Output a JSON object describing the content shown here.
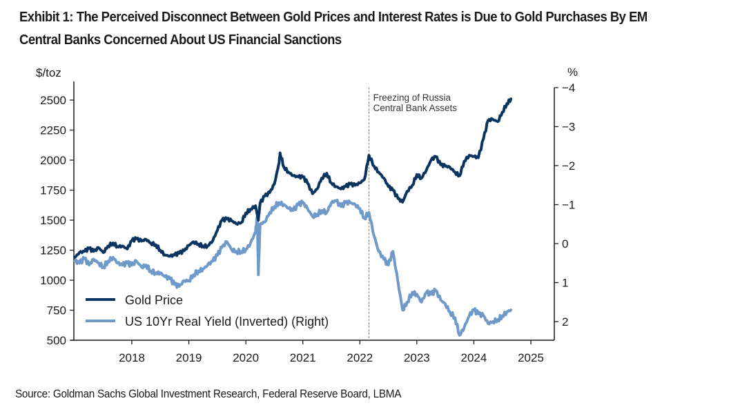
{
  "title": "Exhibit 1: The Perceived Disconnect Between Gold Prices and Interest Rates is Due to Gold Purchases By EM Central Banks Concerned About US Financial Sanctions",
  "source": "Source: Goldman Sachs Global Investment Research, Federal Reserve Board, LBMA",
  "chart_data": {
    "type": "line",
    "title": "Exhibit 1: The Perceived Disconnect Between Gold Prices and Interest Rates is Due to Gold Purchases By EM Central Banks Concerned About US Financial Sanctions",
    "xlabel": "",
    "ylabel_left": "$/toz",
    "ylabel_right": "%",
    "xlim": [
      2017.0,
      2025.45
    ],
    "ylim_left": [
      500,
      2600
    ],
    "ylim_right": [
      2.35,
      -4.35
    ],
    "right_axis_inverted": true,
    "x_ticks": [
      2018,
      2019,
      2020,
      2021,
      2022,
      2023,
      2024,
      2025
    ],
    "x_tick_labels": [
      "2018",
      "2019",
      "2020",
      "2021",
      "2022",
      "2023",
      "2024",
      "2025"
    ],
    "y_left_ticks": [
      500,
      750,
      1000,
      1250,
      1500,
      1750,
      2000,
      2250,
      2500
    ],
    "y_left_tick_labels": [
      "500",
      "750",
      "1000",
      "1250",
      "1500",
      "1750",
      "2000",
      "2250",
      "2500"
    ],
    "y_right_ticks": [
      -4,
      -3,
      -2,
      -1,
      0,
      1,
      2
    ],
    "y_right_tick_labels": [
      "−4",
      "−3",
      "−2",
      "−1",
      "0",
      "1",
      "2"
    ],
    "grid": false,
    "legend_position": "bottom-left",
    "annotations": [
      {
        "type": "vline",
        "x": 2022.16,
        "style": "dashed",
        "text_lines": [
          "Freezing of Russia",
          "Central Bank Assets"
        ]
      }
    ],
    "series": [
      {
        "name": "Gold Price",
        "axis": "left",
        "color": "#0a3460",
        "x": [
          2017.0,
          2017.08,
          2017.17,
          2017.25,
          2017.33,
          2017.42,
          2017.5,
          2017.58,
          2017.67,
          2017.75,
          2017.83,
          2017.92,
          2018.0,
          2018.08,
          2018.17,
          2018.25,
          2018.33,
          2018.42,
          2018.5,
          2018.58,
          2018.67,
          2018.75,
          2018.83,
          2018.92,
          2019.0,
          2019.08,
          2019.17,
          2019.25,
          2019.33,
          2019.42,
          2019.5,
          2019.58,
          2019.67,
          2019.75,
          2019.83,
          2019.92,
          2020.0,
          2020.08,
          2020.17,
          2020.22,
          2020.25,
          2020.33,
          2020.42,
          2020.5,
          2020.58,
          2020.6,
          2020.67,
          2020.75,
          2020.83,
          2020.92,
          2021.0,
          2021.08,
          2021.17,
          2021.25,
          2021.33,
          2021.42,
          2021.5,
          2021.58,
          2021.67,
          2021.75,
          2021.83,
          2021.92,
          2022.0,
          2022.08,
          2022.16,
          2022.25,
          2022.33,
          2022.42,
          2022.5,
          2022.58,
          2022.67,
          2022.75,
          2022.83,
          2022.92,
          2023.0,
          2023.08,
          2023.17,
          2023.25,
          2023.33,
          2023.42,
          2023.5,
          2023.58,
          2023.67,
          2023.75,
          2023.83,
          2023.92,
          2024.0,
          2024.08,
          2024.17,
          2024.25,
          2024.33,
          2024.42,
          2024.5,
          2024.58,
          2024.65
        ],
        "values": [
          1190,
          1230,
          1240,
          1265,
          1240,
          1270,
          1230,
          1285,
          1310,
          1280,
          1285,
          1260,
          1330,
          1345,
          1325,
          1340,
          1310,
          1295,
          1250,
          1210,
          1200,
          1210,
          1225,
          1245,
          1290,
          1320,
          1300,
          1285,
          1285,
          1330,
          1415,
          1500,
          1510,
          1495,
          1470,
          1480,
          1560,
          1590,
          1620,
          1500,
          1640,
          1700,
          1730,
          1800,
          1970,
          2060,
          1940,
          1900,
          1870,
          1860,
          1860,
          1810,
          1720,
          1760,
          1850,
          1890,
          1810,
          1780,
          1760,
          1780,
          1800,
          1790,
          1810,
          1840,
          2040,
          1950,
          1900,
          1850,
          1780,
          1750,
          1680,
          1650,
          1740,
          1790,
          1880,
          1850,
          1920,
          2000,
          2030,
          1960,
          1950,
          1940,
          1900,
          1870,
          1990,
          2040,
          2030,
          2020,
          2180,
          2330,
          2340,
          2320,
          2400,
          2470,
          2510
        ]
      },
      {
        "name": "US 10Yr Real Yield (Inverted) (Right)",
        "axis": "right",
        "color": "#6f99c8",
        "x": [
          2017.0,
          2017.08,
          2017.17,
          2017.25,
          2017.33,
          2017.42,
          2017.5,
          2017.58,
          2017.67,
          2017.75,
          2017.83,
          2017.92,
          2018.0,
          2018.08,
          2018.17,
          2018.25,
          2018.33,
          2018.42,
          2018.5,
          2018.58,
          2018.67,
          2018.75,
          2018.83,
          2018.92,
          2019.0,
          2019.08,
          2019.17,
          2019.25,
          2019.33,
          2019.42,
          2019.5,
          2019.58,
          2019.67,
          2019.75,
          2019.83,
          2019.92,
          2020.0,
          2020.08,
          2020.17,
          2020.2,
          2020.22,
          2020.25,
          2020.33,
          2020.42,
          2020.5,
          2020.58,
          2020.67,
          2020.75,
          2020.83,
          2020.92,
          2021.0,
          2021.08,
          2021.17,
          2021.25,
          2021.33,
          2021.42,
          2021.5,
          2021.58,
          2021.67,
          2021.75,
          2021.83,
          2021.92,
          2022.0,
          2022.08,
          2022.16,
          2022.25,
          2022.33,
          2022.42,
          2022.5,
          2022.58,
          2022.67,
          2022.75,
          2022.83,
          2022.92,
          2023.0,
          2023.08,
          2023.17,
          2023.25,
          2023.33,
          2023.42,
          2023.5,
          2023.58,
          2023.67,
          2023.75,
          2023.83,
          2023.92,
          2024.0,
          2024.08,
          2024.17,
          2024.25,
          2024.33,
          2024.42,
          2024.5,
          2024.58,
          2024.65
        ],
        "values": [
          0.45,
          0.5,
          0.38,
          0.55,
          0.4,
          0.5,
          0.6,
          0.45,
          0.35,
          0.5,
          0.55,
          0.5,
          0.55,
          0.45,
          0.6,
          0.55,
          0.7,
          0.75,
          0.75,
          0.85,
          0.9,
          1.05,
          1.1,
          0.95,
          0.95,
          0.8,
          0.7,
          0.65,
          0.55,
          0.45,
          0.3,
          0.1,
          -0.05,
          0.15,
          0.2,
          0.2,
          0.15,
          0.0,
          -0.3,
          -0.7,
          0.8,
          -0.5,
          -0.55,
          -0.8,
          -0.95,
          -1.05,
          -1.0,
          -0.9,
          -0.85,
          -1.0,
          -1.05,
          -0.9,
          -0.7,
          -0.75,
          -0.85,
          -0.8,
          -1.05,
          -1.1,
          -0.95,
          -1.05,
          -1.05,
          -1.0,
          -0.9,
          -0.65,
          -0.8,
          -0.2,
          0.2,
          0.4,
          0.55,
          0.2,
          1.0,
          1.7,
          1.5,
          1.25,
          1.3,
          1.5,
          1.25,
          1.3,
          1.2,
          1.45,
          1.55,
          1.75,
          1.9,
          2.35,
          2.15,
          1.85,
          1.7,
          1.8,
          1.85,
          2.05,
          2.0,
          1.95,
          1.85,
          1.75,
          1.7
        ]
      }
    ]
  }
}
